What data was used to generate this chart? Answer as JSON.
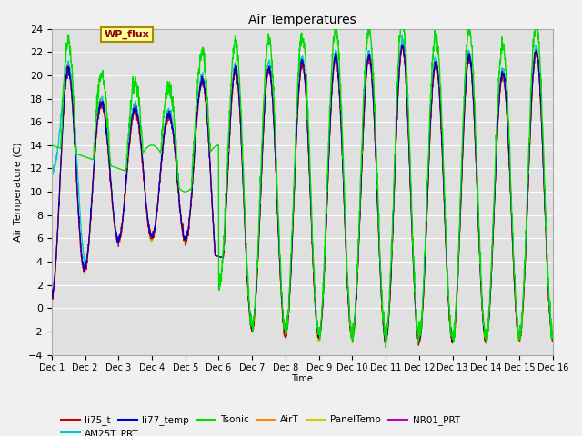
{
  "title": "Air Temperatures",
  "ylabel": "Air Temperature (C)",
  "xlabel": "Time",
  "xlim_days": [
    0,
    15
  ],
  "ylim": [
    -4,
    24
  ],
  "yticks": [
    -4,
    -2,
    0,
    2,
    4,
    6,
    8,
    10,
    12,
    14,
    16,
    18,
    20,
    22,
    24
  ],
  "xtick_labels": [
    "Dec 1",
    "Dec 2",
    "Dec 3",
    "Dec 4",
    "Dec 5",
    "Dec 6",
    "Dec 7",
    "Dec 8",
    "Dec 9",
    "Dec 10",
    "Dec 11",
    "Dec 12",
    "Dec 13",
    "Dec 14",
    "Dec 15",
    "Dec 16"
  ],
  "series": {
    "li75_t": {
      "color": "#cc0000",
      "lw": 0.8
    },
    "li77_temp": {
      "color": "#0000cc",
      "lw": 0.8
    },
    "Tsonic": {
      "color": "#00dd00",
      "lw": 1.0
    },
    "AirT": {
      "color": "#ff8800",
      "lw": 0.8
    },
    "PanelTemp": {
      "color": "#cccc00",
      "lw": 0.8
    },
    "NR01_PRT": {
      "color": "#bb00bb",
      "lw": 0.8
    },
    "AM25T_PRT": {
      "color": "#00cccc",
      "lw": 1.0
    }
  },
  "annotation_text": "WP_flux",
  "bg_color": "#f0f0f0",
  "plot_bg_color": "#e0e0e0",
  "grid_color": "#ffffff",
  "legend_ncol": 3,
  "legend_row2": [
    "AM25T_PRT"
  ]
}
